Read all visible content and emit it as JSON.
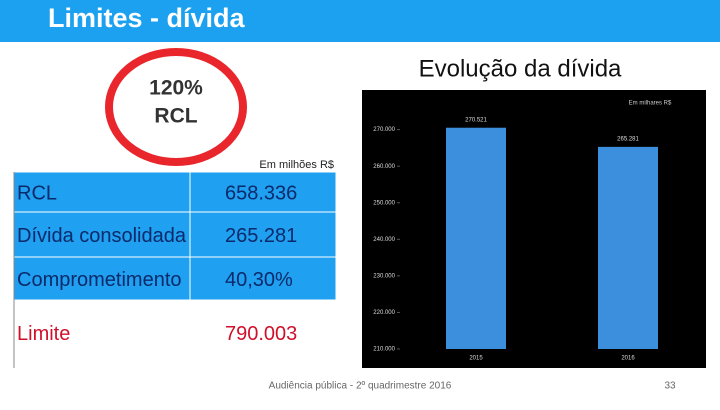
{
  "header": {
    "title": "Limites - dívida"
  },
  "badge": {
    "line1": "120%",
    "line2": "RCL"
  },
  "table": {
    "unit": "Em milhões R$",
    "rows": [
      [
        "RCL",
        "658.336"
      ],
      [
        "Dívida consolidada",
        "265.281"
      ],
      [
        "Comprometimento",
        "40,30%"
      ],
      [
        "Limite",
        "790.003"
      ]
    ]
  },
  "chart_data": {
    "type": "bar",
    "title": "Evolução da dívida",
    "subtitle": "Em milhares R$",
    "categories": [
      "2015",
      "2016"
    ],
    "values": [
      270.521,
      265.281
    ],
    "color": "#3b8fdc",
    "ylim": [
      210,
      274
    ],
    "yticks": [
      {
        "value": 210,
        "label": "210.000"
      },
      {
        "value": 220,
        "label": "220.000"
      },
      {
        "value": 230,
        "label": "230.000"
      },
      {
        "value": 240,
        "label": "240.000"
      },
      {
        "value": 250,
        "label": "250.000"
      },
      {
        "value": 260,
        "label": "260.000"
      },
      {
        "value": 270,
        "label": "270.000"
      }
    ]
  },
  "footer": {
    "text": "Audiência pública - 2º quadrimestre 2016",
    "page": "33"
  }
}
